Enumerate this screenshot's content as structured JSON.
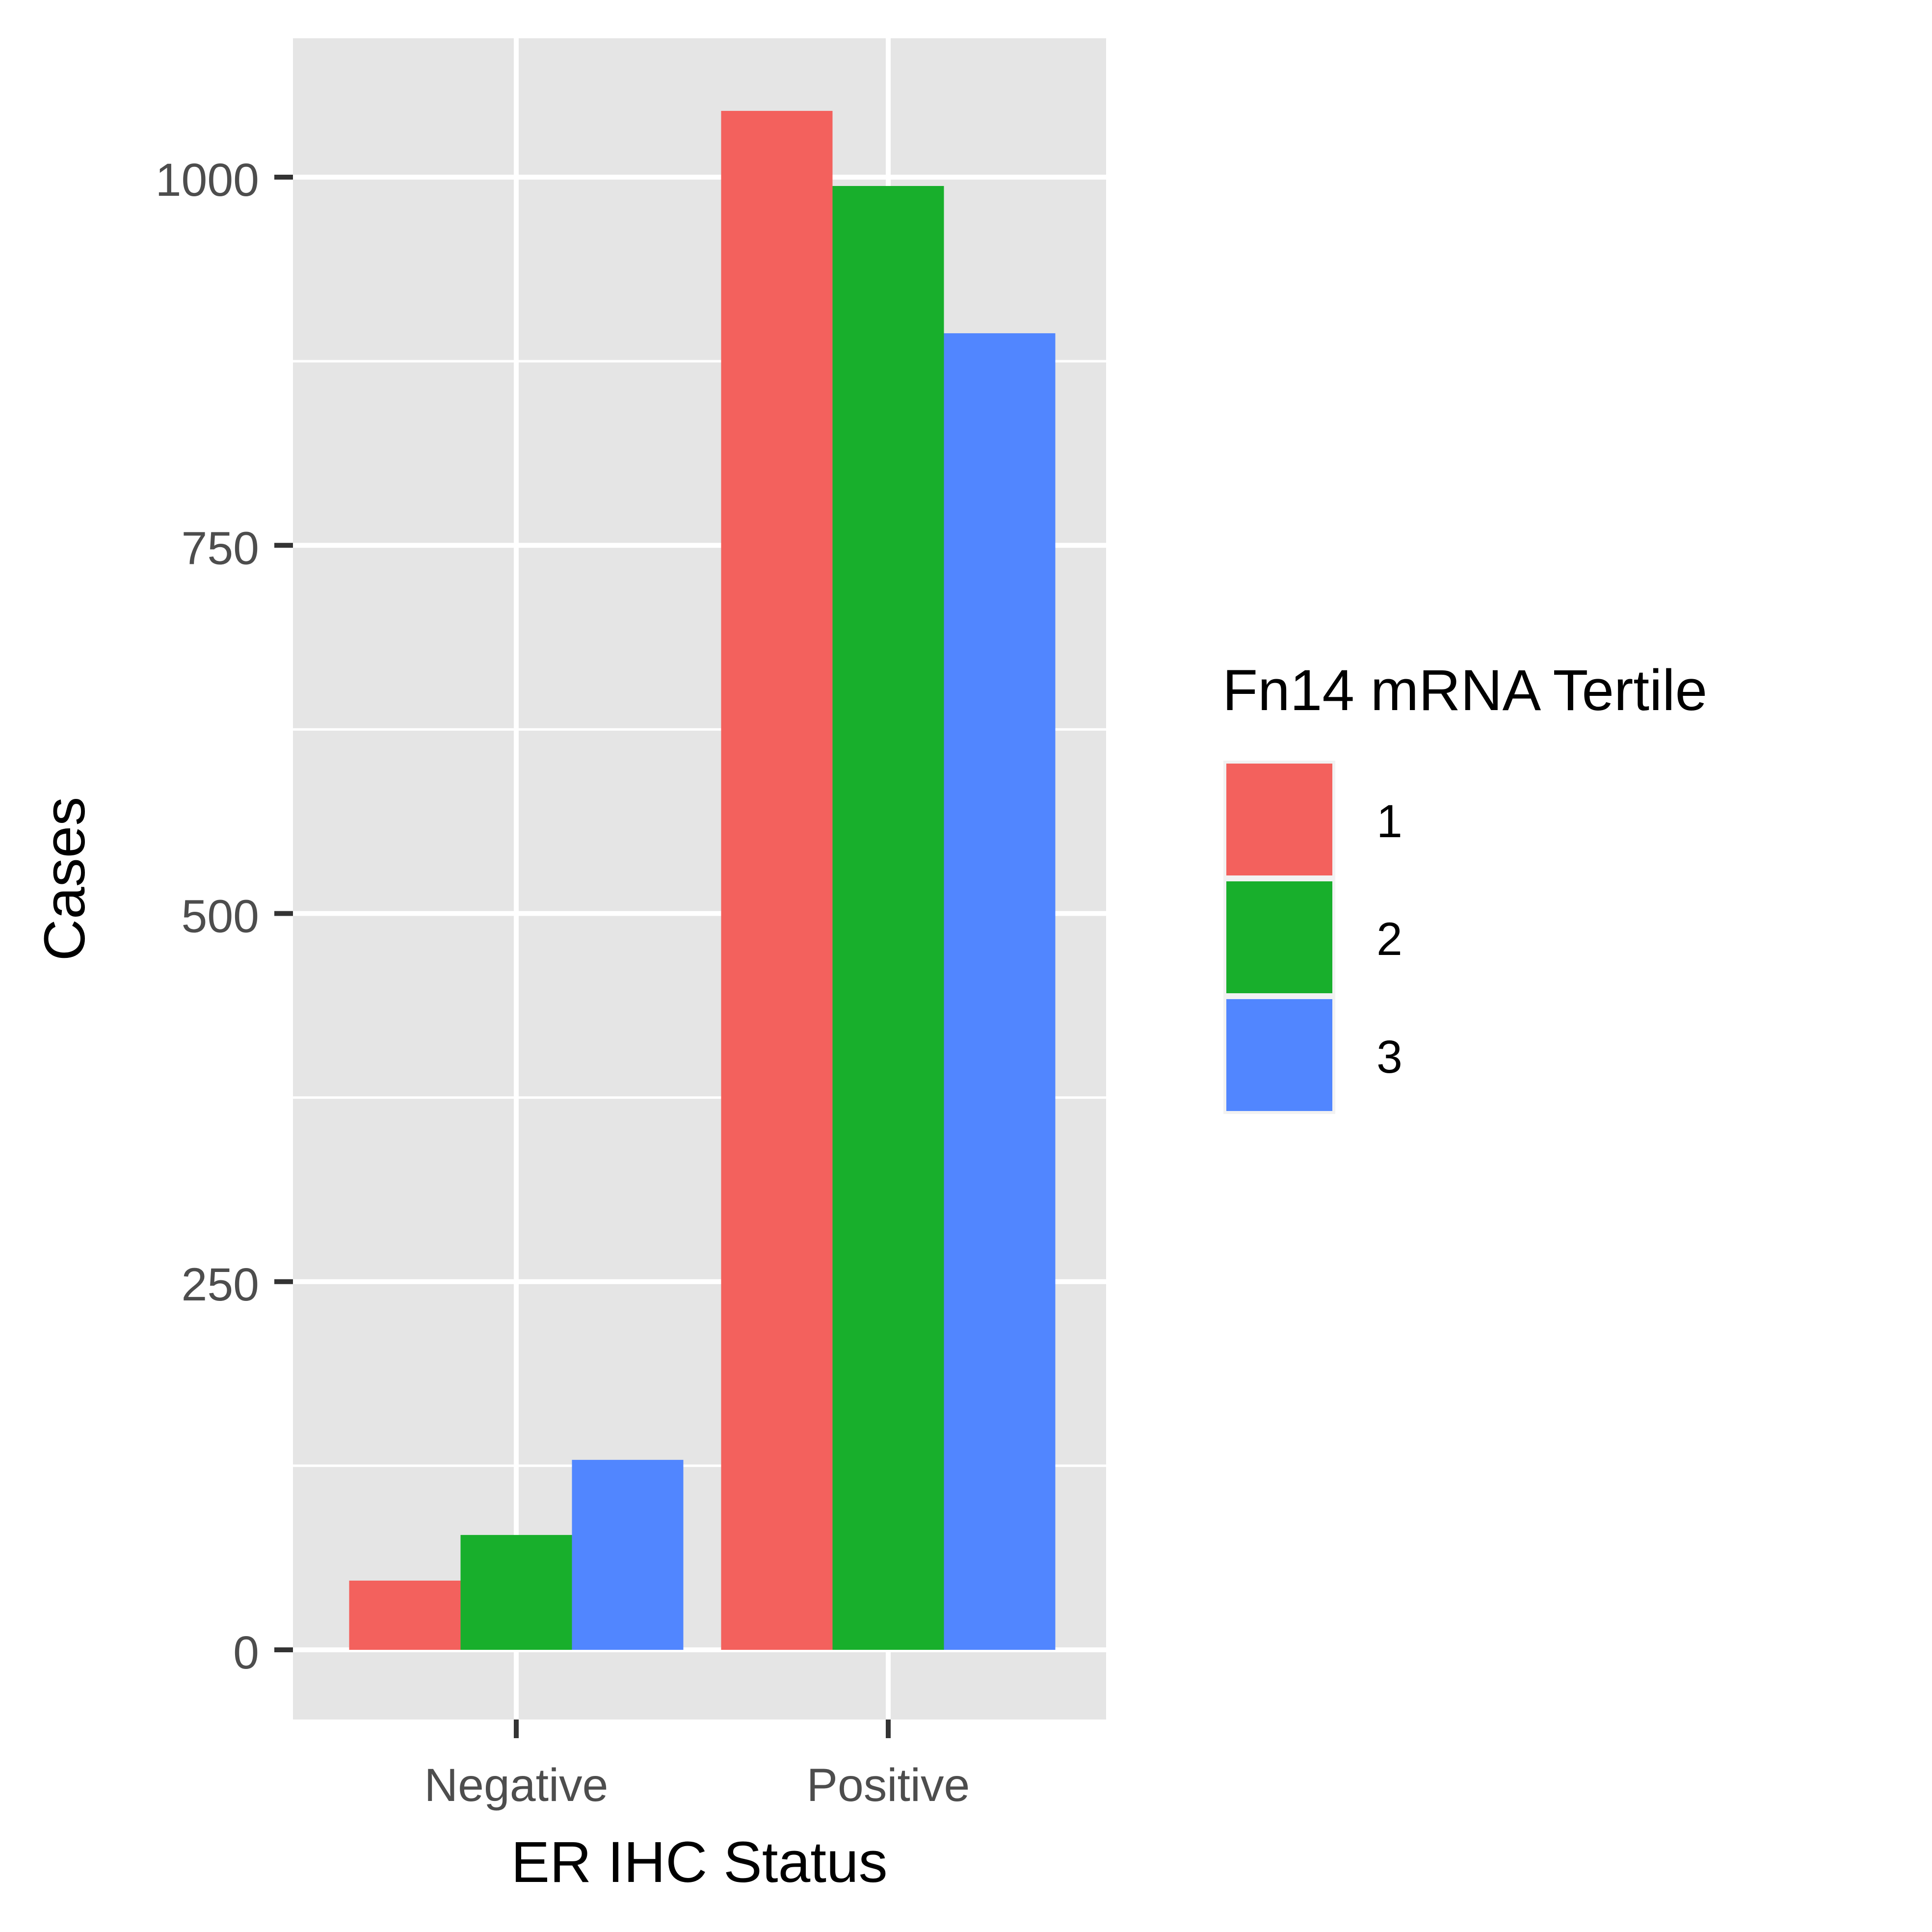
{
  "chart_data": {
    "type": "bar",
    "xlabel": "ER IHC Status",
    "ylabel": "Cases",
    "categories": [
      "Negative",
      "Positive"
    ],
    "ylim": [
      -50,
      1100
    ],
    "yticks": [
      0,
      250,
      500,
      750,
      1000
    ],
    "grid": true,
    "legend": {
      "title": "Fn14 mRNA Tertile",
      "position": "right"
    },
    "series": [
      {
        "name": "1",
        "values": [
          47,
          1045
        ],
        "color": "#F3615D"
      },
      {
        "name": "2",
        "values": [
          78,
          994
        ],
        "color": "#18AF2C"
      },
      {
        "name": "3",
        "values": [
          129,
          894
        ],
        "color": "#5186FF"
      }
    ]
  }
}
